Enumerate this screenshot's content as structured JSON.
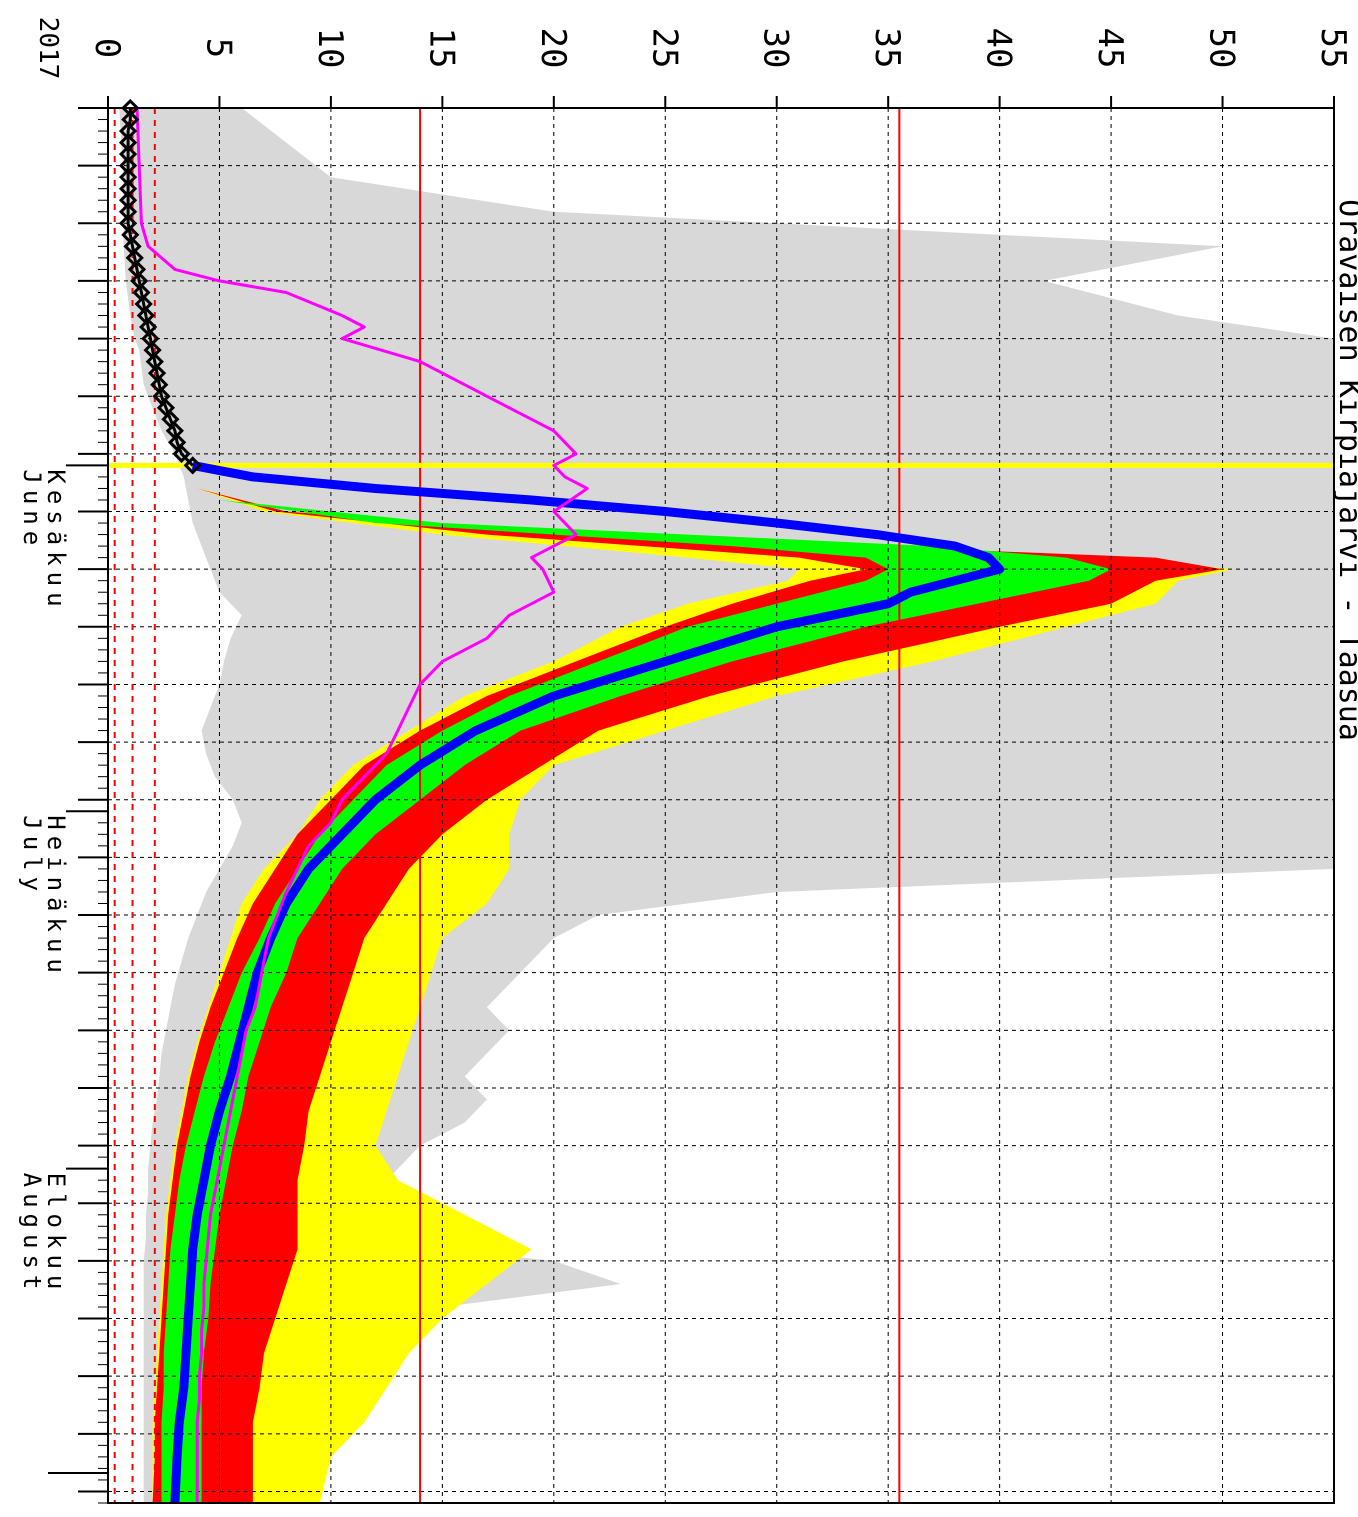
{
  "chart_data": {
    "type": "area",
    "title": "Oravaisen Kirpiäjärvi - Taasua",
    "year": "2017",
    "y_ticks": [
      "0",
      "5",
      "10",
      "15",
      "20",
      "25",
      "30",
      "35",
      "40",
      "45",
      "50",
      "55"
    ],
    "ylim": [
      0,
      55
    ],
    "x_range_days": [
      0,
      121
    ],
    "months": [
      {
        "fi": "Kesäkuu",
        "en": "June",
        "day": 31
      },
      {
        "fi": "Heinäkuu",
        "en": "July",
        "day": 61
      },
      {
        "fi": "Elokuu",
        "en": "August",
        "day": 92
      }
    ],
    "today_day": 31,
    "reference_lines_solid": [
      14,
      35.5
    ],
    "reference_lines_dashed": [
      0.3,
      1.1,
      2.1
    ],
    "grid": true,
    "colors": {
      "envelope": "#d8d8d8",
      "outer_band": "#ffff00",
      "mid_band": "#ff0000",
      "inner_band": "#00ff00",
      "median": "#0000ff",
      "comparison": "#ff00ff",
      "observed": "#000000",
      "today_line": "#ffff00",
      "reference": "#ff0000"
    },
    "series": [
      {
        "key": "envelope",
        "x": [
          0,
          3,
          6,
          9,
          12,
          15,
          18,
          20,
          21,
          24,
          25,
          26,
          28,
          30,
          32,
          34,
          36,
          38,
          40,
          42,
          44,
          46,
          48,
          50,
          52,
          54,
          56,
          58,
          60,
          62,
          64,
          66,
          68,
          70,
          72,
          74,
          76,
          78,
          80,
          82,
          84,
          86,
          88,
          90,
          92,
          94,
          96,
          98,
          100,
          102,
          104,
          106,
          108,
          110,
          112,
          114,
          116,
          118,
          121
        ],
        "low": [
          0.5,
          0.6,
          0.7,
          0.7,
          0.7,
          0.8,
          1.0,
          1.2,
          1.4,
          1.6,
          1.8,
          2.0,
          2.4,
          3.0,
          3.4,
          3.6,
          3.8,
          4.2,
          4.6,
          5.0,
          6.0,
          5.5,
          5.2,
          5.0,
          4.6,
          4.2,
          4.4,
          4.8,
          5.6,
          6.0,
          5.6,
          5.0,
          4.4,
          4.0,
          3.6,
          3.3,
          3.0,
          2.8,
          2.6,
          2.4,
          2.3,
          2.2,
          2.0,
          1.9,
          1.8,
          1.8,
          1.7,
          1.7,
          1.6,
          1.6,
          1.6,
          1.6,
          1.6,
          1.6,
          1.6,
          1.6,
          1.6,
          1.6,
          1.6
        ],
        "high": [
          6,
          8,
          10,
          20,
          50,
          42,
          48,
          55,
          55,
          55,
          55,
          55,
          55,
          55,
          55,
          55,
          55,
          55,
          55,
          55,
          55,
          55,
          55,
          55,
          55,
          55,
          55,
          55,
          55,
          55,
          55,
          55,
          30,
          22,
          20,
          19,
          18,
          17,
          18,
          17,
          16,
          17,
          16,
          14,
          13,
          12,
          11,
          10,
          20,
          23,
          15,
          13,
          12,
          11,
          10,
          9.5,
          9,
          9,
          9
        ]
      },
      {
        "key": "outer_band",
        "x": [
          33,
          35,
          37,
          39,
          40,
          41,
          43,
          45,
          48,
          51,
          54,
          57,
          60,
          63,
          66,
          69,
          72,
          75,
          78,
          81,
          84,
          87,
          90,
          93,
          96,
          99,
          102,
          105,
          108,
          111,
          114,
          117,
          121
        ],
        "low": [
          4.0,
          7.0,
          15.0,
          26.0,
          31.0,
          30.5,
          26.0,
          23.0,
          20.0,
          16.0,
          13.5,
          11.0,
          9.5,
          8.5,
          7.0,
          6.0,
          5.5,
          5.0,
          4.5,
          4.0,
          3.6,
          3.3,
          3.0,
          2.8,
          2.6,
          2.5,
          2.4,
          2.3,
          2.2,
          2.1,
          2.0,
          2.0,
          2.0
        ],
        "high": [
          4.0,
          8.0,
          22.0,
          45.0,
          50.5,
          48.0,
          47.0,
          43.0,
          37.0,
          30.0,
          25.0,
          20.0,
          18.5,
          18.0,
          18.0,
          17.0,
          15.0,
          14.5,
          14.0,
          13.5,
          13.0,
          12.5,
          12.0,
          13.0,
          16.0,
          19.0,
          17.0,
          15.0,
          13.5,
          12.5,
          11.5,
          10.0,
          9.5
        ]
      },
      {
        "key": "mid_band",
        "x": [
          33,
          35,
          37,
          39,
          40,
          41,
          43,
          45,
          48,
          51,
          54,
          57,
          60,
          63,
          66,
          69,
          72,
          75,
          78,
          81,
          84,
          87,
          90,
          93,
          96,
          99,
          102,
          105,
          108,
          111,
          114,
          117,
          121
        ],
        "low": [
          4.0,
          7.5,
          17.0,
          31.0,
          34.0,
          31.5,
          28.0,
          25.0,
          21.0,
          17.0,
          14.0,
          11.5,
          10.0,
          8.5,
          7.5,
          6.5,
          5.8,
          5.2,
          4.6,
          4.1,
          3.7,
          3.4,
          3.1,
          2.9,
          2.7,
          2.6,
          2.5,
          2.4,
          2.3,
          2.2,
          2.1,
          2.1,
          2.0
        ],
        "high": [
          4.0,
          8.0,
          21.0,
          47.0,
          50.0,
          47.0,
          45.0,
          40.0,
          33.0,
          27.0,
          22.0,
          19.5,
          17.0,
          15.0,
          13.5,
          12.5,
          11.5,
          11.0,
          10.5,
          10.0,
          9.5,
          9.0,
          8.8,
          8.5,
          8.5,
          8.5,
          8.0,
          7.5,
          7.0,
          6.8,
          6.5,
          6.5,
          6.5
        ]
      },
      {
        "key": "inner_band",
        "x": [
          34,
          36,
          38,
          39,
          40,
          41,
          43,
          45,
          48,
          51,
          54,
          57,
          60,
          63,
          66,
          69,
          72,
          75,
          78,
          81,
          84,
          87,
          90,
          93,
          96,
          99,
          102,
          105,
          108,
          111,
          114,
          117,
          121
        ],
        "low": [
          5.0,
          12.0,
          28.0,
          34.0,
          35.0,
          34.0,
          30.0,
          26.0,
          22.0,
          18.0,
          15.0,
          12.5,
          11.0,
          9.5,
          8.5,
          7.5,
          6.8,
          6.0,
          5.4,
          4.8,
          4.3,
          3.9,
          3.5,
          3.2,
          3.0,
          2.8,
          2.7,
          2.6,
          2.5,
          2.5,
          2.4,
          2.4,
          2.4
        ],
        "high": [
          5.0,
          15.0,
          37.0,
          43.0,
          45.0,
          44.0,
          39.0,
          34.0,
          28.0,
          23.0,
          18.5,
          16.0,
          14.0,
          12.0,
          10.5,
          9.5,
          8.5,
          8.0,
          7.3,
          6.8,
          6.3,
          6.0,
          5.6,
          5.3,
          5.0,
          4.8,
          4.6,
          4.5,
          4.3,
          4.2,
          4.2,
          4.2,
          4.2
        ]
      },
      {
        "key": "median",
        "x": [
          31,
          32,
          33,
          34,
          35,
          36,
          37,
          38,
          39,
          40,
          41,
          42,
          43,
          45,
          48,
          51,
          54,
          57,
          60,
          63,
          66,
          69,
          72,
          75,
          78,
          81,
          84,
          87,
          90,
          93,
          96,
          99,
          102,
          105,
          108,
          111,
          114,
          117,
          121
        ],
        "y": [
          3.8,
          6.5,
          12.0,
          19.0,
          25.0,
          30.0,
          34.5,
          38.0,
          39.5,
          40.0,
          38.0,
          36.0,
          35.0,
          30.0,
          25.0,
          20.0,
          16.5,
          14.0,
          12.0,
          10.5,
          9.0,
          8.0,
          7.3,
          6.7,
          6.3,
          5.9,
          5.5,
          5.0,
          4.6,
          4.3,
          4.0,
          3.8,
          3.7,
          3.6,
          3.5,
          3.4,
          3.2,
          3.1,
          3.0
        ]
      },
      {
        "key": "comparison",
        "x": [
          0,
          5,
          10,
          12,
          14,
          15,
          16,
          18,
          19,
          20,
          22,
          24,
          26,
          28,
          30,
          31,
          32,
          33,
          35,
          37,
          38,
          39,
          40,
          42,
          44,
          46,
          48,
          50,
          52,
          54,
          56,
          58,
          60,
          62,
          64,
          66,
          68,
          70,
          72,
          74,
          76,
          78,
          80,
          82,
          84,
          86,
          88,
          90,
          92,
          94,
          96,
          98,
          100,
          102,
          104,
          106,
          108,
          110,
          112,
          114,
          116,
          118,
          121
        ],
        "y": [
          1.3,
          1.4,
          1.5,
          1.8,
          3.0,
          5.0,
          8.0,
          10.5,
          11.5,
          10.5,
          14.0,
          16.0,
          18.0,
          20.0,
          21.0,
          20.0,
          20.5,
          21.5,
          20.0,
          21.0,
          20.0,
          19.0,
          19.5,
          20.0,
          18.0,
          17.0,
          15.0,
          14.0,
          13.5,
          13.0,
          12.5,
          11.5,
          10.5,
          10.0,
          9.0,
          8.5,
          8.0,
          7.6,
          7.2,
          7.0,
          6.8,
          6.6,
          6.2,
          6.0,
          5.8,
          5.6,
          5.4,
          5.2,
          5.0,
          4.8,
          4.6,
          4.5,
          4.4,
          4.3,
          4.3,
          4.2,
          4.2,
          4.1,
          4.1,
          4.0,
          4.0,
          4.0,
          4.0
        ]
      },
      {
        "key": "observed",
        "x": [
          0,
          1,
          2,
          3,
          4,
          5,
          6,
          7,
          8,
          9,
          10,
          11,
          12,
          13,
          14,
          15,
          16,
          17,
          18,
          19,
          20,
          21,
          22,
          23,
          24,
          25,
          26,
          27,
          28,
          29,
          30,
          31
        ],
        "y": [
          1.0,
          1.0,
          0.9,
          0.9,
          0.9,
          0.9,
          0.9,
          0.9,
          0.9,
          0.9,
          0.9,
          1.0,
          1.1,
          1.2,
          1.3,
          1.4,
          1.5,
          1.6,
          1.7,
          1.8,
          1.9,
          2.0,
          2.1,
          2.2,
          2.3,
          2.4,
          2.6,
          2.8,
          3.0,
          3.1,
          3.3,
          3.8
        ]
      }
    ]
  }
}
